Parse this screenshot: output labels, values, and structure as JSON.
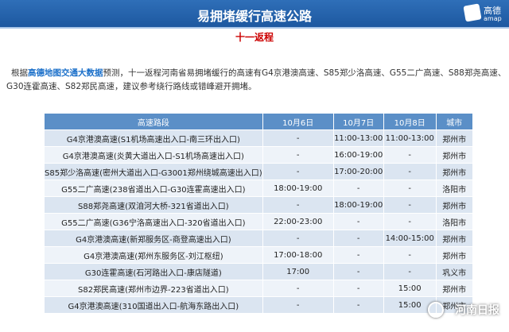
{
  "header": {
    "title": "易拥堵缓行高速公路",
    "logo_cn": "高德",
    "logo_en": "amap"
  },
  "subtitle": "十一返程",
  "paragraph": {
    "before": "根据",
    "highlight": "高德地图交通大数据",
    "after": "预测，十一返程河南省易拥堵缓行的高速有G4京港澳高速、S85郑少洛高速、G55二广高速、S88郑尧高速、G30连霍高速、S82郑民高速，建议参考绕行路线或错峰避开拥堵。"
  },
  "table": {
    "columns": [
      "高速路段",
      "10月6日",
      "10月7日",
      "10月8日",
      "城市"
    ],
    "rows": [
      [
        "G4京港澳高速(S1机场高速出入口-南三环出入口)",
        "-",
        "11:00-13:00",
        "11:00-13:00",
        "郑州市"
      ],
      [
        "G4京港澳高速(炎黄大道出入口-S1机场高速出入口)",
        "-",
        "16:00-19:00",
        "-",
        "郑州市"
      ],
      [
        "S85郑少洛高速(密州大道出入口-G3001郑州绕城高速出入口)",
        "-",
        "17:00-20:00",
        "-",
        "郑州市"
      ],
      [
        "G55二广高速(238省道出入口-G30连霍高速出入口)",
        "18:00-19:00",
        "-",
        "-",
        "洛阳市"
      ],
      [
        "S88郑尧高速(双洎河大桥-321省道出入口)",
        "-",
        "18:00-19:00",
        "-",
        "郑州市"
      ],
      [
        "G55二广高速(G36宁洛高速出入口-320省道出入口)",
        "22:00-23:00",
        "-",
        "-",
        "洛阳市"
      ],
      [
        "G4京港澳高速(新郑服务区-商登高速出入口)",
        "-",
        "-",
        "14:00-15:00",
        "郑州市"
      ],
      [
        "G4京港澳高速(郑州东服务区-刘江枢纽)",
        "17:00-18:00",
        "-",
        "-",
        "郑州市"
      ],
      [
        "G30连霍高速(石河路出入口-康店隧道)",
        "17:00",
        "-",
        "-",
        "巩义市"
      ],
      [
        "S82郑民高速(郑州市边界-223省道出入口)",
        "-",
        "-",
        "15:00",
        "郑州市"
      ],
      [
        "G4京港澳高速(310国道出入口-航海东路出入口)",
        "-",
        "-",
        "15:00",
        "郑州市"
      ]
    ]
  },
  "watermark": "河南日报"
}
